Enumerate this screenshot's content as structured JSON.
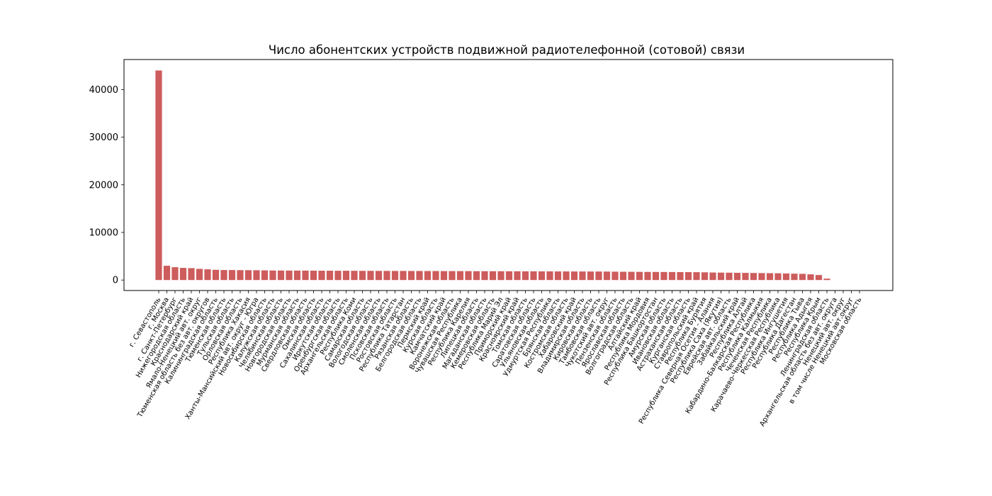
{
  "chart_data": {
    "type": "bar",
    "title": "Число абонентских устройств подвижной радиотелефонной (сотовой) связи",
    "xlabel": "",
    "ylabel": "",
    "ylim": [
      -2200,
      46300
    ],
    "yticks": [
      0,
      10000,
      20000,
      30000,
      40000
    ],
    "grid": false,
    "bar_color": "#cd5c5c",
    "categories": [
      "г. Севастополь",
      "г. Москва",
      "г. Санкт-Петербург",
      "Нижегородская область",
      "Краснодарский край",
      "Ямало-Ненецкий авт. округ",
      "Тюменская область без авт. округов",
      "Калининградская область",
      "Тюменская область",
      "Тульская область",
      "Орловская область",
      "Республика Хакасия",
      "Ханты-Мансийский авт. округ - Югра",
      "Новосибирская область",
      "Калужская область",
      "Челябинская область",
      "Новгородская область",
      "Мурманская область",
      "Свердловская область",
      "Омская область",
      "Сахалинская область",
      "Иркутская область",
      "Оренбургская область",
      "Архангельская область",
      "Республика Коми",
      "Самарская область",
      "Вологодская область",
      "Смоленская область",
      "Псковская область",
      "Ростовская область",
      "Республика Татарстан",
      "Рязанская область",
      "Белгородская область",
      "Пермский край",
      "Курская область",
      "Камчатский край",
      "Воронежская область",
      "Чувашская Республика",
      "Республика Карелия",
      "Липецкая область",
      "Магаданская область",
      "Кемеровская область",
      "Республика Марий Эл",
      "Приморский край",
      "Красноярский край",
      "Томская область",
      "Саратовская область",
      "Ульяновская область",
      "Удмуртская Республика",
      "Брянская область",
      "Костромская область",
      "Хабаровский край",
      "Владимирская область",
      "Кировская область",
      "Тамбовская область",
      "Чукотский авт. округ",
      "Пензенская область",
      "Ярославская область",
      "Волгоградская область",
      "Алтайский край",
      "Республика Мордовия",
      "Республика Башкортостан",
      "Амурская область",
      "Ивановская область",
      "Астраханская область",
      "Курганская область",
      "Ставропольский край",
      "Республика Бурятия",
      "Республика Северная Осетия - Алания",
      "Республика Саха (Якутия)",
      "Еврейская авт. область",
      "Забайкальский край",
      "Республика Алтай",
      "Кабардино-Балкарская Республика",
      "Республика Калмыкия",
      "Чеченская Республика",
      "Карачаево-Черкесская Республика",
      "Республика Ингушетия",
      "Республика Дагестан",
      "Республика Тыва",
      "Республика Адыгея",
      "Республика Крым",
      "Ленинградская область",
      "Архангельская область без авт. округа",
      "Ненецкий авт. округ",
      "в том числе Ненецкий авт.округ",
      "Московская область"
    ],
    "values": [
      44000,
      3000,
      2700,
      2550,
      2500,
      2350,
      2250,
      2150,
      2100,
      2100,
      2080,
      2070,
      2060,
      2030,
      2000,
      2000,
      1990,
      1980,
      1980,
      1970,
      1960,
      1960,
      1950,
      1950,
      1940,
      1930,
      1930,
      1920,
      1920,
      1910,
      1910,
      1900,
      1900,
      1890,
      1890,
      1880,
      1880,
      1870,
      1870,
      1860,
      1860,
      1850,
      1850,
      1840,
      1840,
      1830,
      1830,
      1820,
      1820,
      1810,
      1810,
      1800,
      1800,
      1790,
      1790,
      1780,
      1760,
      1740,
      1730,
      1720,
      1710,
      1700,
      1690,
      1680,
      1670,
      1660,
      1650,
      1620,
      1580,
      1560,
      1540,
      1520,
      1500,
      1480,
      1460,
      1440,
      1420,
      1380,
      1340,
      1300,
      1200,
      1050,
      300,
      0,
      0,
      0,
      0
    ]
  }
}
